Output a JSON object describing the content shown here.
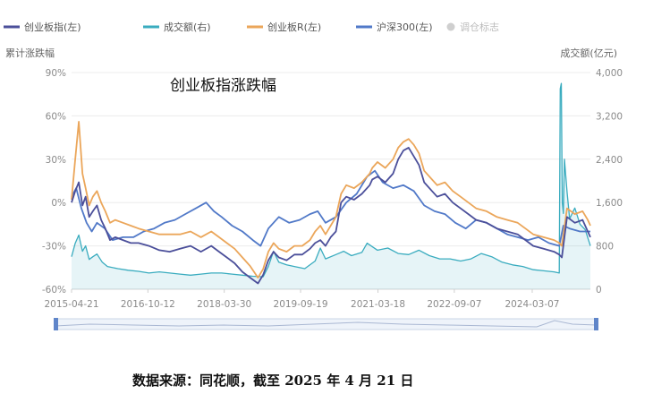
{
  "chart_data": {
    "type": "line",
    "title": "创业板指涨跌幅",
    "left_axis_label": "累计涨跌幅",
    "right_axis_label": "成交额(亿元)",
    "source_note": "数据来源：同花顺，截至 2025 年 4 月 21 日",
    "left_ylim": [
      -60,
      90
    ],
    "left_ticks": [
      "90%",
      "60%",
      "30%",
      "0%",
      "-30%",
      "-60%"
    ],
    "left_tick_values": [
      90,
      60,
      30,
      0,
      -30,
      -60
    ],
    "right_ylim": [
      0,
      4000
    ],
    "right_ticks": [
      "4,000",
      "3,200",
      "2,400",
      "1,600",
      "800",
      "0"
    ],
    "right_tick_values": [
      4000,
      3200,
      2400,
      1600,
      800,
      0
    ],
    "x_range": [
      2015.31,
      2025.3
    ],
    "x_ticks": [
      "2015-04-21",
      "2016-10-12",
      "2018-03-30",
      "2019-09-19",
      "2021-03-18",
      "2022-09-07",
      "2024-03-07"
    ],
    "x_tick_values": [
      2015.31,
      2016.78,
      2018.25,
      2019.72,
      2021.21,
      2022.68,
      2024.18
    ],
    "grid": "horizontal",
    "legend_position": "top",
    "series": [
      {
        "name": "创业板指(左)",
        "axis": "left",
        "color": "#4b4f9a",
        "x": [
          2015.31,
          2015.38,
          2015.45,
          2015.52,
          2015.58,
          2015.65,
          2015.72,
          2015.8,
          2015.88,
          2015.96,
          2016.05,
          2016.15,
          2016.3,
          2016.45,
          2016.6,
          2016.8,
          2017.0,
          2017.2,
          2017.4,
          2017.6,
          2017.8,
          2018.0,
          2018.15,
          2018.3,
          2018.45,
          2018.6,
          2018.75,
          2018.9,
          2019.0,
          2019.1,
          2019.2,
          2019.3,
          2019.45,
          2019.6,
          2019.75,
          2019.9,
          2020.0,
          2020.1,
          2020.2,
          2020.3,
          2020.4,
          2020.5,
          2020.6,
          2020.75,
          2020.9,
          2021.05,
          2021.1,
          2021.2,
          2021.35,
          2021.5,
          2021.6,
          2021.7,
          2021.8,
          2021.9,
          2022.0,
          2022.1,
          2022.25,
          2022.35,
          2022.5,
          2022.65,
          2022.8,
          2022.95,
          2023.1,
          2023.3,
          2023.5,
          2023.7,
          2023.9,
          2024.05,
          2024.2,
          2024.4,
          2024.6,
          2024.7,
          2024.75,
          2024.85,
          2025.0,
          2025.15,
          2025.25,
          2025.3
        ],
        "y": [
          0,
          8,
          14,
          -2,
          4,
          -10,
          -6,
          -2,
          -12,
          -18,
          -26,
          -24,
          -26,
          -28,
          -28,
          -30,
          -33,
          -34,
          -32,
          -30,
          -34,
          -30,
          -34,
          -38,
          -42,
          -48,
          -52,
          -56,
          -50,
          -40,
          -34,
          -38,
          -40,
          -36,
          -36,
          -32,
          -28,
          -26,
          -30,
          -24,
          -20,
          0,
          4,
          2,
          6,
          12,
          16,
          18,
          14,
          20,
          30,
          36,
          38,
          32,
          26,
          14,
          8,
          4,
          6,
          0,
          -4,
          -8,
          -12,
          -14,
          -18,
          -20,
          -22,
          -26,
          -30,
          -32,
          -34,
          -36,
          -38,
          -10,
          -14,
          -12,
          -20,
          -24
        ]
      },
      {
        "name": "成交额(右)",
        "axis": "right",
        "color": "#3aacbf",
        "x": [
          2015.31,
          2015.38,
          2015.45,
          2015.52,
          2015.58,
          2015.65,
          2015.72,
          2015.8,
          2015.9,
          2016.0,
          2016.2,
          2016.4,
          2016.6,
          2016.8,
          2017.0,
          2017.2,
          2017.4,
          2017.6,
          2017.8,
          2018.0,
          2018.2,
          2018.4,
          2018.6,
          2018.8,
          2019.0,
          2019.1,
          2019.2,
          2019.3,
          2019.45,
          2019.6,
          2019.8,
          2020.0,
          2020.1,
          2020.2,
          2020.4,
          2020.55,
          2020.7,
          2020.9,
          2021.0,
          2021.2,
          2021.4,
          2021.6,
          2021.8,
          2022.0,
          2022.2,
          2022.4,
          2022.6,
          2022.8,
          2023.0,
          2023.2,
          2023.4,
          2023.6,
          2023.8,
          2024.0,
          2024.2,
          2024.4,
          2024.6,
          2024.7,
          2024.72,
          2024.74,
          2024.76,
          2024.78,
          2024.8,
          2024.85,
          2024.9,
          2025.0,
          2025.1,
          2025.2,
          2025.3
        ],
        "y": [
          600,
          850,
          1000,
          700,
          800,
          550,
          600,
          650,
          500,
          420,
          380,
          350,
          330,
          300,
          320,
          300,
          280,
          260,
          280,
          300,
          300,
          280,
          260,
          240,
          230,
          420,
          700,
          500,
          450,
          420,
          380,
          520,
          760,
          560,
          640,
          700,
          620,
          680,
          850,
          720,
          760,
          660,
          640,
          720,
          620,
          560,
          560,
          520,
          560,
          660,
          600,
          500,
          450,
          420,
          360,
          340,
          320,
          300,
          3700,
          3800,
          1600,
          1400,
          2400,
          1800,
          1300,
          1500,
          1200,
          1100,
          800
        ]
      },
      {
        "name": "创业板R(左)",
        "axis": "left",
        "color": "#eba65a",
        "x": [
          2015.31,
          2015.38,
          2015.45,
          2015.52,
          2015.58,
          2015.65,
          2015.72,
          2015.8,
          2015.88,
          2015.96,
          2016.05,
          2016.15,
          2016.3,
          2016.45,
          2016.6,
          2016.8,
          2017.0,
          2017.2,
          2017.4,
          2017.6,
          2017.8,
          2018.0,
          2018.15,
          2018.3,
          2018.45,
          2018.6,
          2018.75,
          2018.9,
          2019.0,
          2019.1,
          2019.2,
          2019.3,
          2019.45,
          2019.6,
          2019.75,
          2019.9,
          2020.0,
          2020.1,
          2020.2,
          2020.3,
          2020.4,
          2020.5,
          2020.6,
          2020.75,
          2020.9,
          2021.05,
          2021.1,
          2021.2,
          2021.35,
          2021.5,
          2021.6,
          2021.7,
          2021.8,
          2021.9,
          2022.0,
          2022.1,
          2022.25,
          2022.35,
          2022.5,
          2022.65,
          2022.8,
          2022.95,
          2023.1,
          2023.3,
          2023.5,
          2023.7,
          2023.9,
          2024.05,
          2024.2,
          2024.4,
          2024.6,
          2024.7,
          2024.75,
          2024.85,
          2025.0,
          2025.15,
          2025.25,
          2025.3
        ],
        "y": [
          2,
          30,
          56,
          20,
          10,
          -2,
          4,
          8,
          0,
          -6,
          -14,
          -12,
          -14,
          -16,
          -18,
          -20,
          -22,
          -22,
          -22,
          -20,
          -24,
          -20,
          -24,
          -28,
          -32,
          -38,
          -44,
          -52,
          -46,
          -34,
          -28,
          -32,
          -34,
          -30,
          -30,
          -26,
          -20,
          -16,
          -22,
          -16,
          -10,
          6,
          12,
          10,
          14,
          20,
          24,
          28,
          24,
          30,
          38,
          42,
          44,
          40,
          34,
          22,
          16,
          12,
          14,
          8,
          4,
          0,
          -4,
          -6,
          -10,
          -12,
          -14,
          -18,
          -22,
          -24,
          -26,
          -28,
          -30,
          -4,
          -8,
          -6,
          -12,
          -16
        ]
      },
      {
        "name": "沪深300(左)",
        "axis": "left",
        "color": "#5179c8",
        "x": [
          2015.31,
          2015.4,
          2015.5,
          2015.6,
          2015.7,
          2015.8,
          2015.95,
          2016.1,
          2016.3,
          2016.5,
          2016.7,
          2016.9,
          2017.1,
          2017.3,
          2017.5,
          2017.7,
          2017.9,
          2018.05,
          2018.2,
          2018.4,
          2018.6,
          2018.8,
          2018.95,
          2019.1,
          2019.3,
          2019.5,
          2019.7,
          2019.9,
          2020.05,
          2020.2,
          2020.4,
          2020.6,
          2020.8,
          2021.0,
          2021.15,
          2021.3,
          2021.5,
          2021.7,
          2021.9,
          2022.1,
          2022.3,
          2022.5,
          2022.7,
          2022.9,
          2023.1,
          2023.3,
          2023.5,
          2023.7,
          2023.9,
          2024.1,
          2024.3,
          2024.5,
          2024.7,
          2024.78,
          2024.9,
          2025.1,
          2025.3
        ],
        "y": [
          4,
          10,
          -4,
          -14,
          -20,
          -14,
          -18,
          -26,
          -24,
          -24,
          -20,
          -18,
          -14,
          -12,
          -8,
          -4,
          0,
          -6,
          -10,
          -16,
          -20,
          -26,
          -30,
          -18,
          -10,
          -14,
          -12,
          -8,
          -6,
          -14,
          -10,
          0,
          6,
          18,
          22,
          14,
          10,
          12,
          8,
          -2,
          -6,
          -8,
          -14,
          -18,
          -12,
          -14,
          -18,
          -22,
          -24,
          -26,
          -24,
          -28,
          -30,
          -16,
          -18,
          -20,
          -20
        ]
      }
    ],
    "extra_legend": {
      "name": "调仓标志",
      "color": "#cfcfcf"
    }
  }
}
